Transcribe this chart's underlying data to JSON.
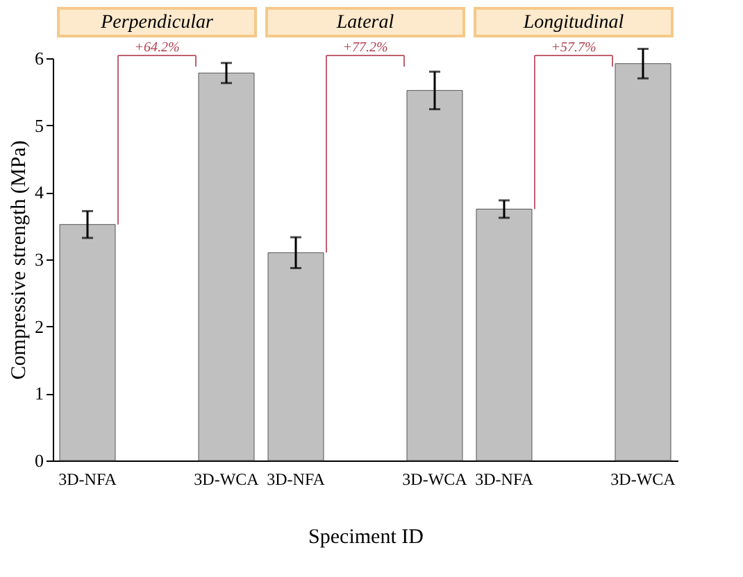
{
  "chart_data": [
    {
      "type": "bar",
      "title": "Perpendicular",
      "ylabel": "Compressive strength (MPa)",
      "categories": [
        "3D-NFA",
        "3D-WCA"
      ],
      "values": [
        3.52,
        5.78
      ],
      "errors": [
        0.2,
        0.15
      ],
      "color": "#c0c0c0",
      "ylim": [
        0,
        6
      ],
      "yticks": [
        0,
        1,
        2,
        3,
        4,
        5,
        6
      ],
      "annotations": [
        "+64.2%"
      ]
    },
    {
      "type": "bar",
      "title": "Lateral",
      "xlabel": "Speciment ID",
      "categories": [
        "3D-NFA",
        "3D-WCA"
      ],
      "values": [
        3.1,
        5.52
      ],
      "errors": [
        0.23,
        0.28
      ],
      "color": "#c0c0c0",
      "ylim": [
        0,
        6
      ],
      "tick_labels": "x",
      "annotations": [
        "+77.2%"
      ]
    },
    {
      "type": "bar",
      "title": "Longitudinal",
      "categories": [
        "3D-NFA",
        "3D-WCA"
      ],
      "values": [
        3.75,
        5.92
      ],
      "errors": [
        0.13,
        0.22
      ],
      "color": "#c0c0c0",
      "ylim": [
        0,
        6
      ],
      "tick_labels": "x",
      "annotations": [
        "+57.7%"
      ]
    }
  ]
}
